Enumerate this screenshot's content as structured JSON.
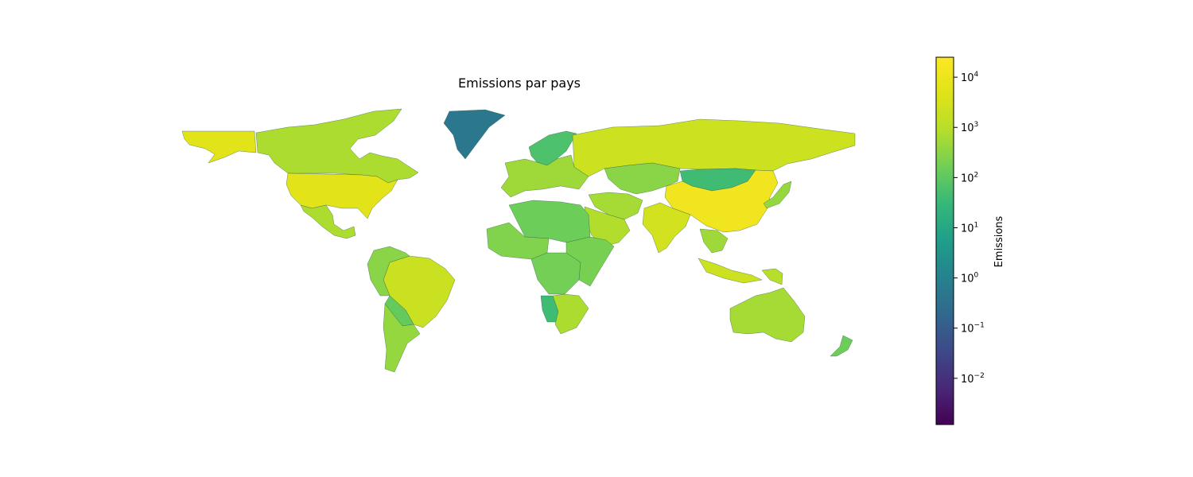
{
  "chart_data": {
    "type": "choropleth",
    "title": "Emissions par pays",
    "colorbar": {
      "label": "Emissions",
      "scale": "log",
      "colormap": "viridis",
      "range": [
        0.0012,
        25000
      ],
      "ticks": [
        {
          "value": 0.01,
          "base": "10",
          "exp": "−2"
        },
        {
          "value": 0.1,
          "base": "10",
          "exp": "−1"
        },
        {
          "value": 1,
          "base": "10",
          "exp": "0"
        },
        {
          "value": 10,
          "base": "10",
          "exp": "1"
        },
        {
          "value": 100,
          "base": "10",
          "exp": "2"
        },
        {
          "value": 1000,
          "base": "10",
          "exp": "3"
        },
        {
          "value": 10000,
          "base": "10",
          "exp": "4"
        }
      ]
    },
    "regions": [
      {
        "name": "China",
        "value": 12000
      },
      {
        "name": "United States",
        "value": 5500
      },
      {
        "name": "Russia",
        "value": 2200
      },
      {
        "name": "India",
        "value": 2800
      },
      {
        "name": "Brazil",
        "value": 2000
      },
      {
        "name": "Canada",
        "value": 700
      },
      {
        "name": "Alaska",
        "value": 5500
      },
      {
        "name": "Greenland",
        "value": 0.5
      },
      {
        "name": "Mexico",
        "value": 700
      },
      {
        "name": "Australia",
        "value": 600
      },
      {
        "name": "Indonesia",
        "value": 2200
      },
      {
        "name": "Mongolia",
        "value": 40
      },
      {
        "name": "Kazakhstan",
        "value": 300
      },
      {
        "name": "Scandinavia",
        "value": 60
      },
      {
        "name": "Europe",
        "value": 500
      },
      {
        "name": "Western Africa",
        "value": 250
      },
      {
        "name": "Northern Africa",
        "value": 150
      },
      {
        "name": "Central Africa",
        "value": 180
      },
      {
        "name": "Eastern Africa",
        "value": 200
      },
      {
        "name": "Namibia",
        "value": 40
      },
      {
        "name": "Southern Africa",
        "value": 700
      },
      {
        "name": "Arabian Peninsula",
        "value": 800
      },
      {
        "name": "Iran",
        "value": 600
      },
      {
        "name": "Argentina",
        "value": 400
      },
      {
        "name": "Bolivia",
        "value": 120
      },
      {
        "name": "Peru",
        "value": 300
      },
      {
        "name": "Southeast Asia",
        "value": 500
      },
      {
        "name": "Japan",
        "value": 400
      },
      {
        "name": "New Zealand",
        "value": 150
      },
      {
        "name": "Papua New Guinea",
        "value": 900
      }
    ]
  }
}
